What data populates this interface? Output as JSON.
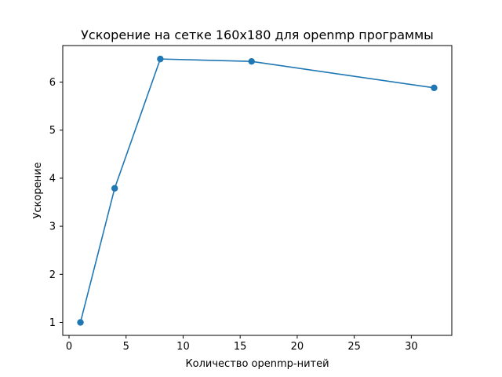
{
  "chart_data": {
    "type": "line",
    "title": "Ускорение на сетке 160x180 для openmp программы",
    "xlabel": "Количество openmp-нитей",
    "ylabel": "Ускорение",
    "x": [
      1,
      4,
      8,
      16,
      32
    ],
    "series": [
      {
        "values": [
          1.0,
          3.79,
          6.48,
          6.43,
          5.88
        ],
        "color": "#1f77b4",
        "marker": "circle"
      }
    ],
    "xlim": [
      -0.55,
      33.55
    ],
    "ylim": [
      0.73,
      6.76
    ],
    "xticks": [
      0,
      5,
      10,
      15,
      20,
      25,
      30
    ],
    "yticks": [
      1,
      2,
      3,
      4,
      5,
      6
    ],
    "grid": false,
    "legend": "none"
  }
}
